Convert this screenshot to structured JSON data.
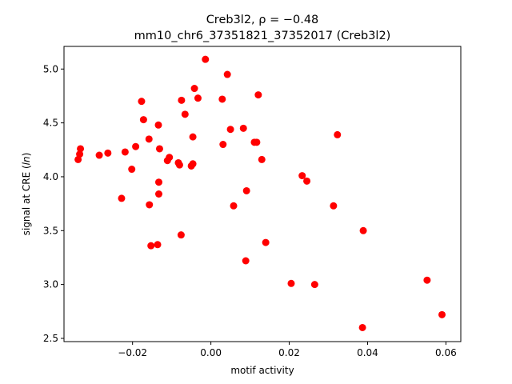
{
  "chart_data": {
    "type": "scatter",
    "title_line1_prefix": "Creb3l2, ",
    "title_line1_rho": "ρ = −0.48",
    "title_line2": "mm10_chr6_37351821_37352017 (Creb3l2)",
    "xlabel": "motif activity",
    "ylabel_prefix": "signal at CRE (",
    "ylabel_italic": "ln",
    "ylabel_suffix": ")",
    "xlim": [
      -0.0375,
      0.0638
    ],
    "ylim": [
      2.47,
      5.21
    ],
    "xticks": [
      -0.02,
      0.0,
      0.02,
      0.04,
      0.06
    ],
    "xtick_labels": [
      "−0.02",
      "0.00",
      "0.02",
      "0.04",
      "0.06"
    ],
    "yticks": [
      2.5,
      3.0,
      3.5,
      4.0,
      4.5,
      5.0
    ],
    "ytick_labels": [
      "2.5",
      "3.0",
      "3.5",
      "4.0",
      "4.5",
      "5.0"
    ],
    "point_color": "#ff0000",
    "points": [
      [
        -0.0339,
        4.16
      ],
      [
        -0.0335,
        4.21
      ],
      [
        -0.0333,
        4.26
      ],
      [
        -0.0285,
        4.2
      ],
      [
        -0.0263,
        4.22
      ],
      [
        -0.0228,
        3.8
      ],
      [
        -0.0219,
        4.23
      ],
      [
        -0.0202,
        4.07
      ],
      [
        -0.0192,
        4.28
      ],
      [
        -0.0177,
        4.7
      ],
      [
        -0.0172,
        4.53
      ],
      [
        -0.0158,
        4.35
      ],
      [
        -0.0157,
        3.74
      ],
      [
        -0.0153,
        3.36
      ],
      [
        -0.0136,
        3.37
      ],
      [
        -0.0134,
        4.48
      ],
      [
        -0.0133,
        3.95
      ],
      [
        -0.0133,
        3.84
      ],
      [
        -0.0131,
        4.26
      ],
      [
        -0.0111,
        4.15
      ],
      [
        -0.0106,
        4.18
      ],
      [
        -0.0083,
        4.13
      ],
      [
        -0.008,
        4.11
      ],
      [
        -0.0076,
        3.46
      ],
      [
        -0.0075,
        4.71
      ],
      [
        -0.0066,
        4.58
      ],
      [
        -0.005,
        4.1
      ],
      [
        -0.0046,
        4.37
      ],
      [
        -0.0046,
        4.12
      ],
      [
        -0.0042,
        4.82
      ],
      [
        -0.0033,
        4.73
      ],
      [
        -0.0014,
        5.09
      ],
      [
        0.0029,
        4.72
      ],
      [
        0.0031,
        4.3
      ],
      [
        0.0042,
        4.95
      ],
      [
        0.005,
        4.44
      ],
      [
        0.0058,
        3.73
      ],
      [
        0.0083,
        4.45
      ],
      [
        0.0089,
        3.22
      ],
      [
        0.0091,
        3.87
      ],
      [
        0.0111,
        4.32
      ],
      [
        0.0117,
        4.32
      ],
      [
        0.0121,
        4.76
      ],
      [
        0.013,
        4.16
      ],
      [
        0.014,
        3.39
      ],
      [
        0.0205,
        3.01
      ],
      [
        0.0233,
        4.01
      ],
      [
        0.0245,
        3.96
      ],
      [
        0.0265,
        3.0
      ],
      [
        0.0313,
        3.73
      ],
      [
        0.0323,
        4.39
      ],
      [
        0.0387,
        2.6
      ],
      [
        0.0389,
        3.5
      ],
      [
        0.0552,
        3.04
      ],
      [
        0.059,
        2.72
      ]
    ]
  }
}
